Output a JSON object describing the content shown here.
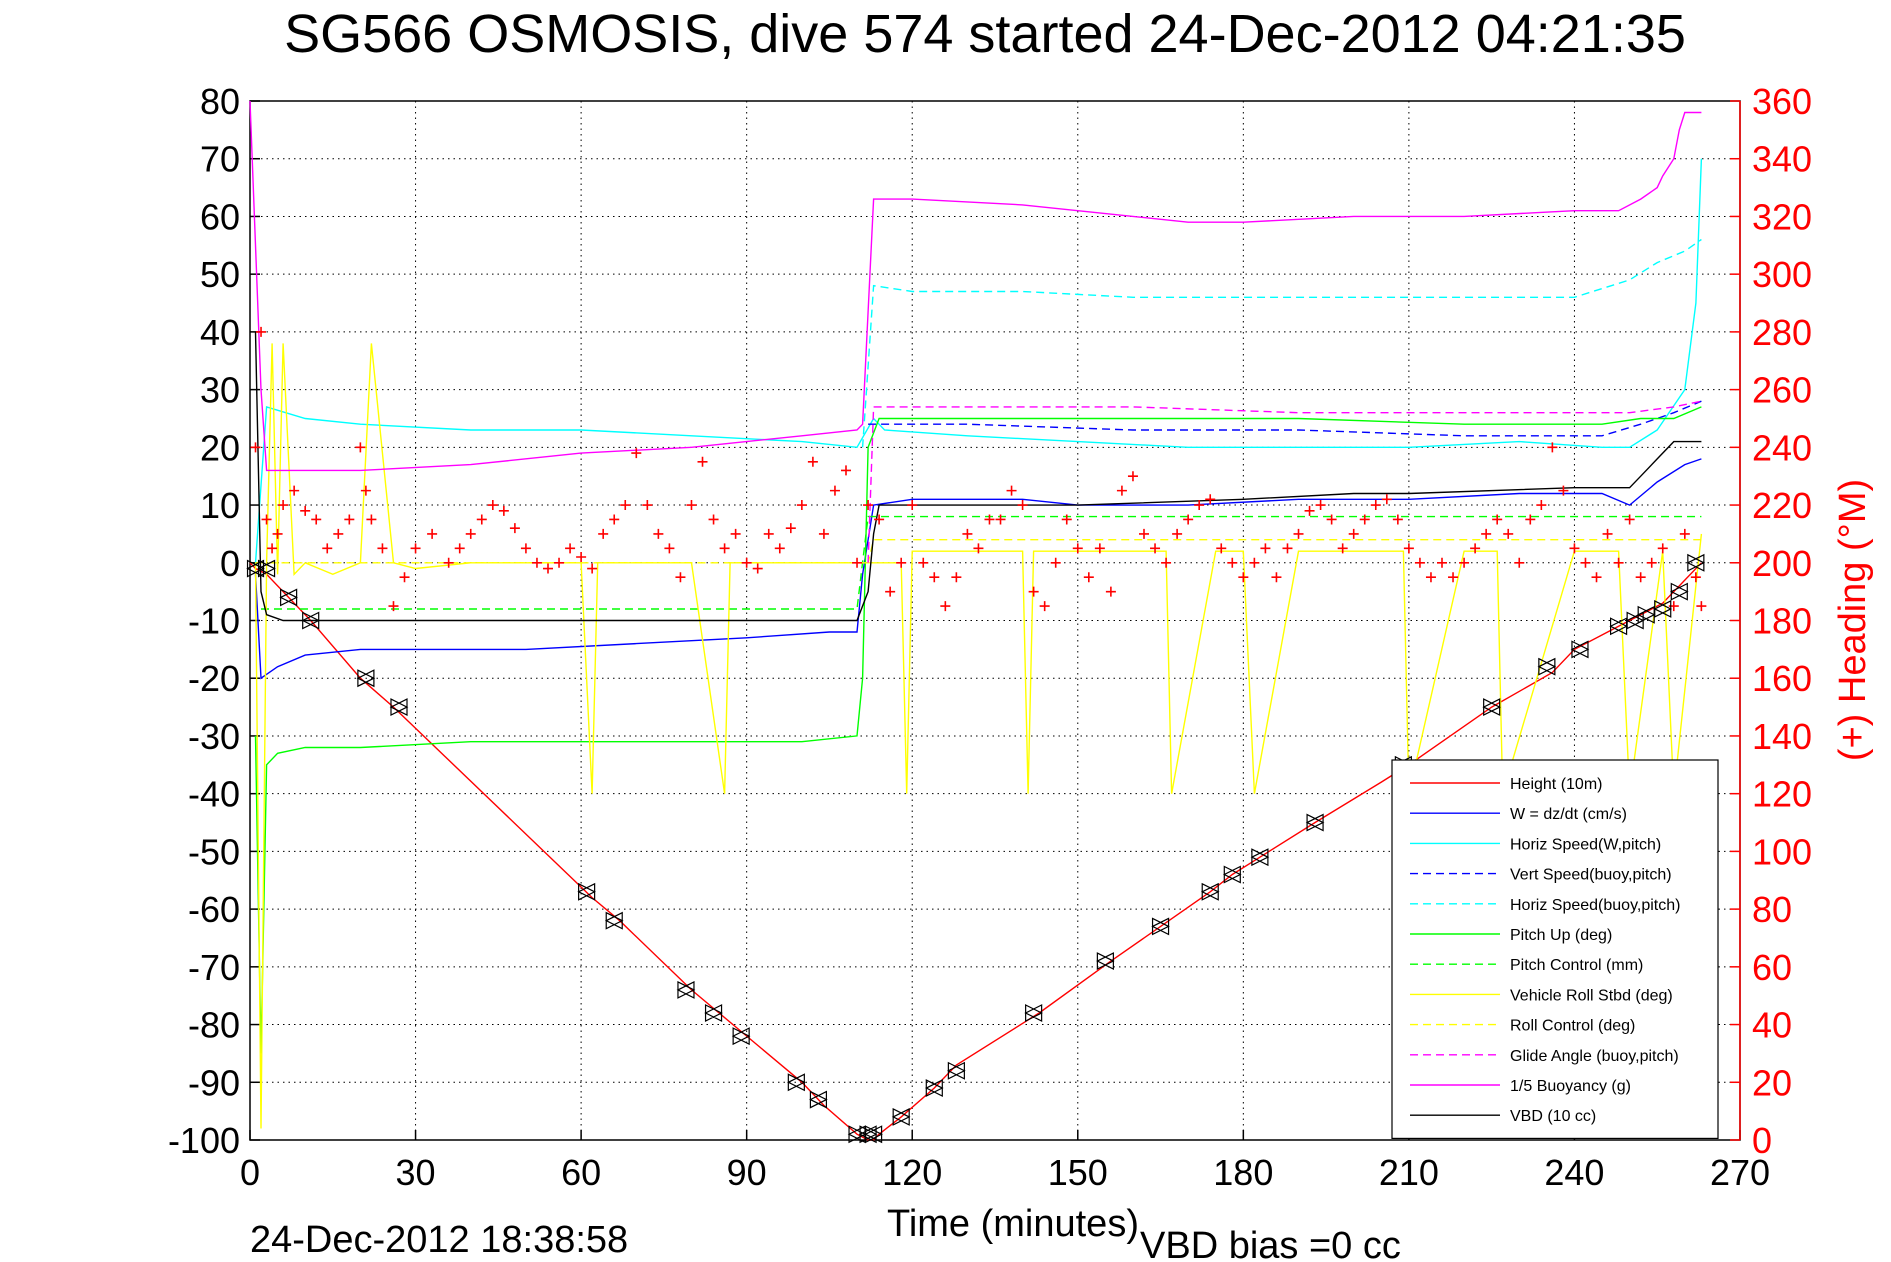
{
  "chart_data": {
    "type": "line",
    "title": "SG566 OSMOSIS, dive 574 started 24-Dec-2012 04:21:35",
    "xlabel": "Time (minutes)",
    "ylabel_right": "(+) Heading (°M)",
    "footer_left": "24-Dec-2012 18:38:58",
    "footer_right": "VBD bias =0 cc",
    "xlim": [
      0,
      270
    ],
    "ylim": [
      -100,
      80
    ],
    "ylim_right": [
      0,
      360
    ],
    "x_ticks": [
      0,
      30,
      60,
      90,
      120,
      150,
      180,
      210,
      240,
      270
    ],
    "y_ticks": [
      80,
      70,
      60,
      50,
      40,
      30,
      20,
      10,
      0,
      -10,
      -20,
      -30,
      -40,
      -50,
      -60,
      -70,
      -80,
      -90,
      -100
    ],
    "y_ticks_right": [
      360,
      340,
      320,
      300,
      280,
      260,
      240,
      220,
      200,
      180,
      160,
      140,
      120,
      100,
      80,
      60,
      40,
      20,
      0
    ],
    "grid": true,
    "legend_position": "bottom-right",
    "colors": {
      "heading": "#ff0000",
      "axis_right": "#ff0000"
    },
    "series": [
      {
        "name": "Height (10m)",
        "color": "#ff0000",
        "style": "solid",
        "x": [
          0,
          1,
          3,
          7,
          11,
          20,
          26,
          62,
          67,
          80,
          85,
          90,
          100,
          104,
          110,
          112,
          113,
          114,
          118,
          124,
          128,
          143,
          156,
          165,
          174,
          178,
          183,
          193,
          205,
          210,
          225,
          236,
          240,
          248,
          252,
          256,
          260,
          263
        ],
        "y": [
          0,
          -1,
          -2,
          -6,
          -10,
          -20,
          -25,
          -58,
          -62,
          -74,
          -78,
          -82,
          -90,
          -94,
          -99,
          -100,
          -100,
          -99,
          -96,
          -91,
          -87,
          -78,
          -69,
          -63,
          -57,
          -54,
          -51,
          -45,
          -38,
          -35,
          -25,
          -19,
          -15,
          -11,
          -9,
          -7,
          -3,
          0
        ]
      },
      {
        "name": "W = dz/dt (cm/s)",
        "color": "#0000ff",
        "style": "solid",
        "x": [
          1,
          2,
          5,
          10,
          20,
          30,
          50,
          70,
          90,
          105,
          110,
          111,
          113,
          120,
          140,
          150,
          170,
          190,
          210,
          230,
          245,
          250,
          255,
          260,
          263
        ],
        "y": [
          -2,
          -20,
          -18,
          -16,
          -15,
          -15,
          -15,
          -14,
          -13,
          -12,
          -12,
          -2,
          10,
          11,
          11,
          10,
          10,
          11,
          11,
          12,
          12,
          10,
          14,
          17,
          18
        ]
      },
      {
        "name": "Horiz Speed(W,pitch)",
        "color": "#00ffff",
        "style": "solid",
        "x": [
          1,
          3,
          10,
          20,
          40,
          60,
          80,
          100,
          110,
          113,
          115,
          130,
          150,
          170,
          190,
          210,
          230,
          245,
          250,
          255,
          260,
          262,
          263
        ],
        "y": [
          0,
          27,
          25,
          24,
          23,
          23,
          22,
          21,
          20,
          25,
          23,
          22,
          21,
          20,
          20,
          20,
          21,
          20,
          20,
          23,
          30,
          45,
          70
        ]
      },
      {
        "name": "Vert Speed(buoy,pitch)",
        "color": "#0000ff",
        "style": "dashed",
        "x": [
          112,
          130,
          160,
          190,
          220,
          245,
          252,
          258,
          263
        ],
        "y": [
          24,
          24,
          23,
          23,
          22,
          22,
          24,
          26,
          28
        ]
      },
      {
        "name": "Horiz Speed(buoy,pitch)",
        "color": "#00ffff",
        "style": "dashed",
        "x": [
          111,
          113,
          120,
          140,
          160,
          180,
          200,
          220,
          240,
          250,
          255,
          260,
          263
        ],
        "y": [
          20,
          48,
          47,
          47,
          46,
          46,
          46,
          46,
          46,
          49,
          52,
          54,
          56
        ]
      },
      {
        "name": "Pitch Up (deg)",
        "color": "#00ff00",
        "style": "solid",
        "x": [
          1,
          2,
          3,
          5,
          10,
          20,
          40,
          60,
          80,
          100,
          110,
          111,
          112,
          114,
          130,
          160,
          190,
          220,
          245,
          252,
          258,
          263
        ],
        "y": [
          -30,
          -85,
          -35,
          -33,
          -32,
          -32,
          -31,
          -31,
          -31,
          -31,
          -30,
          -20,
          20,
          25,
          25,
          25,
          25,
          24,
          24,
          25,
          25,
          27
        ]
      },
      {
        "name": "Pitch Control (mm)",
        "color": "#00ff00",
        "style": "dashed",
        "x": [
          2,
          110,
          112,
          263
        ],
        "y": [
          -8,
          -8,
          8,
          8
        ]
      },
      {
        "name": "Vehicle Roll Stbd (deg)",
        "color": "#ffff00",
        "style": "solid",
        "x": [
          1,
          2,
          3,
          4,
          5,
          6,
          8,
          10,
          15,
          20,
          22,
          26,
          30,
          40,
          60,
          62,
          63,
          64,
          80,
          86,
          87,
          100,
          110,
          112,
          118,
          119,
          120,
          130,
          140,
          141,
          142,
          160,
          166,
          167,
          175,
          180,
          182,
          190,
          200,
          209,
          210,
          220,
          226,
          227,
          240,
          248,
          250,
          256,
          258,
          263
        ],
        "y": [
          0,
          -98,
          0,
          38,
          -2,
          38,
          -2,
          0,
          -2,
          0,
          38,
          0,
          -1,
          0,
          0,
          -40,
          0,
          0,
          0,
          -40,
          0,
          0,
          0,
          0,
          0,
          -40,
          2,
          2,
          2,
          -40,
          2,
          2,
          2,
          -40,
          2,
          2,
          -40,
          2,
          2,
          2,
          -40,
          2,
          2,
          -40,
          2,
          2,
          -40,
          2,
          -40,
          5
        ]
      },
      {
        "name": "Roll Control (deg)",
        "color": "#ffff00",
        "style": "dashed",
        "x": [
          1,
          30,
          60,
          90,
          112,
          113,
          150,
          200,
          250,
          263
        ],
        "y": [
          0,
          0,
          0,
          0,
          0,
          4,
          4,
          4,
          4,
          4
        ]
      },
      {
        "name": "Glide Angle (buoy,pitch)",
        "color": "#ff00ff",
        "style": "dashed",
        "x": [
          112,
          113,
          130,
          160,
          190,
          220,
          240,
          250,
          258,
          263
        ],
        "y": [
          0,
          27,
          27,
          27,
          26,
          26,
          26,
          26,
          27,
          28
        ]
      },
      {
        "name": "1/5 Buoyancy (g)",
        "color": "#ff00ff",
        "style": "solid",
        "x": [
          0,
          1,
          2,
          3,
          10,
          20,
          40,
          60,
          80,
          100,
          110,
          111,
          113,
          120,
          140,
          160,
          170,
          180,
          200,
          220,
          240,
          248,
          252,
          255,
          256,
          258,
          259,
          260,
          263
        ],
        "y": [
          80,
          55,
          30,
          16,
          16,
          16,
          17,
          19,
          20,
          22,
          23,
          24,
          63,
          63,
          62,
          60,
          59,
          59,
          60,
          60,
          61,
          61,
          63,
          65,
          67,
          70,
          75,
          78,
          78
        ]
      },
      {
        "name": "VBD (10 cc)",
        "color": "#000000",
        "style": "solid",
        "x": [
          1,
          2,
          3,
          6,
          30,
          60,
          90,
          110,
          112,
          113,
          114,
          120,
          150,
          180,
          200,
          210,
          240,
          250,
          252,
          255,
          258,
          263
        ],
        "y": [
          40,
          -5,
          -9,
          -10,
          -10,
          -10,
          -10,
          -10,
          -5,
          5,
          10,
          10,
          10,
          11,
          12,
          12,
          13,
          13,
          15,
          18,
          21,
          21
        ]
      }
    ],
    "heading_series": {
      "name": "(+) Heading",
      "axis": "right",
      "marker": "+",
      "color": "#ff0000",
      "x": [
        1,
        2,
        3,
        4,
        5,
        6,
        8,
        10,
        12,
        14,
        16,
        18,
        20,
        21,
        22,
        24,
        26,
        28,
        30,
        33,
        36,
        38,
        40,
        42,
        44,
        46,
        48,
        50,
        52,
        54,
        56,
        58,
        60,
        62,
        64,
        66,
        68,
        70,
        72,
        74,
        76,
        78,
        80,
        82,
        84,
        86,
        88,
        90,
        92,
        94,
        96,
        98,
        100,
        102,
        104,
        106,
        108,
        110,
        112,
        114,
        116,
        118,
        120,
        122,
        124,
        126,
        128,
        130,
        132,
        134,
        136,
        138,
        140,
        142,
        144,
        146,
        148,
        150,
        152,
        154,
        156,
        158,
        160,
        162,
        164,
        166,
        168,
        170,
        172,
        174,
        176,
        178,
        180,
        182,
        184,
        186,
        188,
        190,
        192,
        194,
        196,
        198,
        200,
        202,
        204,
        206,
        208,
        210,
        212,
        214,
        216,
        218,
        220,
        222,
        224,
        226,
        228,
        230,
        232,
        234,
        236,
        238,
        240,
        242,
        244,
        246,
        248,
        250,
        252,
        254,
        256,
        258,
        260,
        262,
        263
      ],
      "y": [
        240,
        280,
        215,
        205,
        210,
        220,
        225,
        218,
        215,
        205,
        210,
        215,
        240,
        225,
        215,
        205,
        185,
        195,
        205,
        210,
        200,
        205,
        210,
        215,
        220,
        218,
        212,
        205,
        200,
        198,
        200,
        205,
        202,
        198,
        210,
        215,
        220,
        238,
        220,
        210,
        205,
        195,
        220,
        235,
        215,
        205,
        210,
        200,
        198,
        210,
        205,
        212,
        220,
        235,
        210,
        225,
        232,
        200,
        220,
        215,
        190,
        200,
        220,
        200,
        195,
        185,
        195,
        210,
        205,
        215,
        215,
        225,
        220,
        190,
        185,
        200,
        215,
        205,
        195,
        205,
        190,
        225,
        230,
        210,
        205,
        200,
        210,
        215,
        220,
        222,
        205,
        200,
        195,
        200,
        205,
        195,
        205,
        210,
        218,
        220,
        215,
        205,
        210,
        215,
        220,
        222,
        215,
        205,
        200,
        195,
        200,
        195,
        200,
        205,
        210,
        215,
        210,
        200,
        215,
        220,
        240,
        225,
        205,
        200,
        195,
        210,
        200,
        215,
        195,
        200,
        205,
        185,
        210,
        195,
        185
      ]
    },
    "vbd_markers": {
      "color": "#000000",
      "x": [
        1,
        3,
        7,
        11,
        21,
        27,
        61,
        66,
        79,
        84,
        89,
        99,
        103,
        110,
        112,
        113,
        118,
        124,
        128,
        142,
        155,
        165,
        174,
        178,
        183,
        193,
        209,
        225,
        235,
        241,
        248,
        251,
        253,
        256,
        259,
        262
      ],
      "y": [
        -1,
        -1,
        -6,
        -10,
        -20,
        -25,
        -57,
        -62,
        -74,
        -78,
        -82,
        -90,
        -93,
        -99,
        -99,
        -99,
        -96,
        -91,
        -88,
        -78,
        -69,
        -63,
        -57,
        -54,
        -51,
        -45,
        -35,
        -25,
        -18,
        -15,
        -11,
        -10,
        -9,
        -8,
        -5,
        0
      ]
    }
  }
}
